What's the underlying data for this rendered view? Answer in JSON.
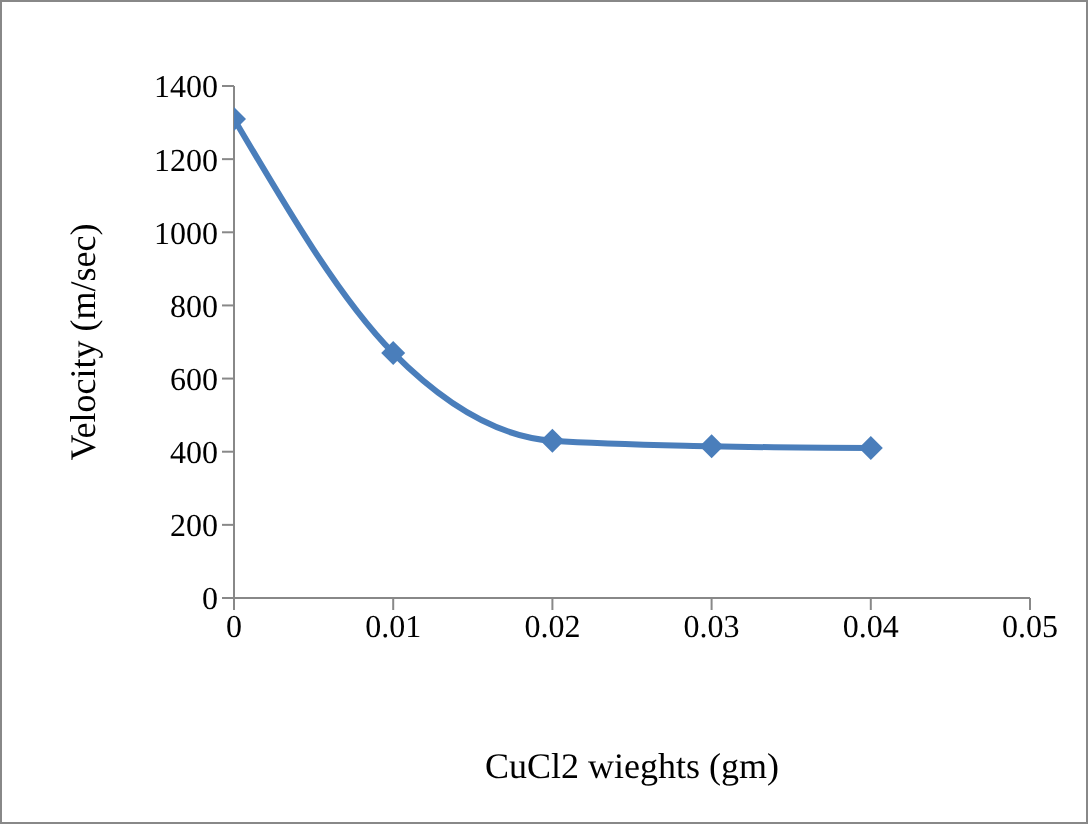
{
  "chart_data": {
    "type": "line",
    "xlabel": "CuCl2 wieghts (gm)",
    "ylabel": "Velocity (m/sec)",
    "x": [
      0,
      0.01,
      0.02,
      0.03,
      0.04
    ],
    "series": [
      {
        "color": "#4a7ebb",
        "values": [
          1310,
          670,
          430,
          415,
          410
        ]
      }
    ],
    "xlim": [
      0,
      0.05
    ],
    "xticks": [
      0,
      0.01,
      0.02,
      0.03,
      0.04,
      0.05
    ],
    "ylim": [
      0,
      1400
    ],
    "yticks": [
      0,
      200,
      400,
      600,
      800,
      1000,
      1200,
      1400
    ],
    "grid": false,
    "legend": false,
    "marker": "diamond",
    "line_style": "solid"
  }
}
